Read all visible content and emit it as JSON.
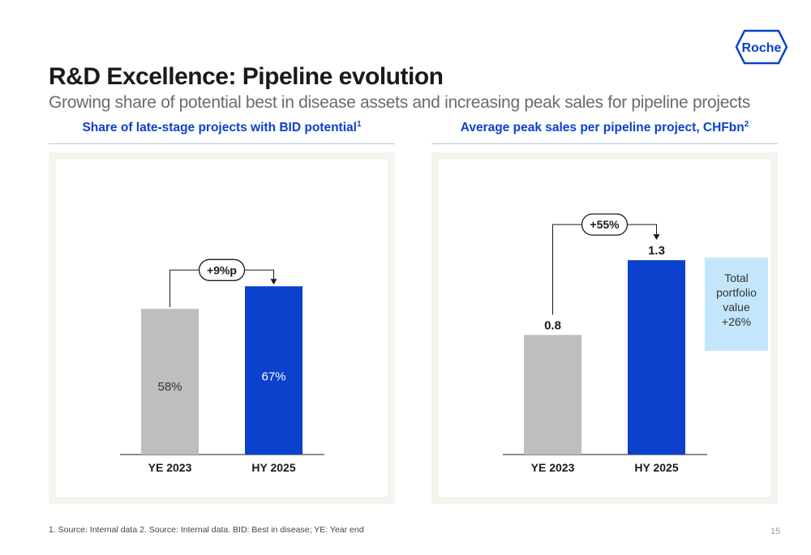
{
  "header": {
    "title": "R&D Excellence: Pipeline evolution",
    "subtitle": "Growing share of potential best in disease assets and increasing peak sales for pipeline projects",
    "logo_text": "Roche"
  },
  "colors": {
    "accent_blue": "#0b41cd",
    "bar_grey": "#bebebe",
    "note_box": "#c4e6fc",
    "panel_bg": "#f4f4ee"
  },
  "chart_data": [
    {
      "type": "bar",
      "title": "Share of late-stage projects with BID potential",
      "title_footnote": "1",
      "categories": [
        "YE 2023",
        "HY 2025"
      ],
      "values": [
        58,
        67
      ],
      "value_labels": [
        "58%",
        "67%"
      ],
      "ylim": [
        0,
        100
      ],
      "change_label": "+9%p",
      "grid": false
    },
    {
      "type": "bar",
      "title": "Average peak sales per pipeline project, CHFbn",
      "title_footnote": "2",
      "categories": [
        "YE 2023",
        "HY 2025"
      ],
      "values": [
        0.8,
        1.3
      ],
      "value_labels": [
        "0.8",
        "1.3"
      ],
      "ylim": [
        0,
        1.68
      ],
      "change_label": "+55%",
      "note": [
        "Total",
        "portfolio",
        "value",
        "+26%"
      ],
      "grid": false
    }
  ],
  "footer": {
    "footnote": "1. Source: Internal data 2. Source: Internal data. BID: Best in disease; YE: Year end",
    "page_number": "15"
  }
}
